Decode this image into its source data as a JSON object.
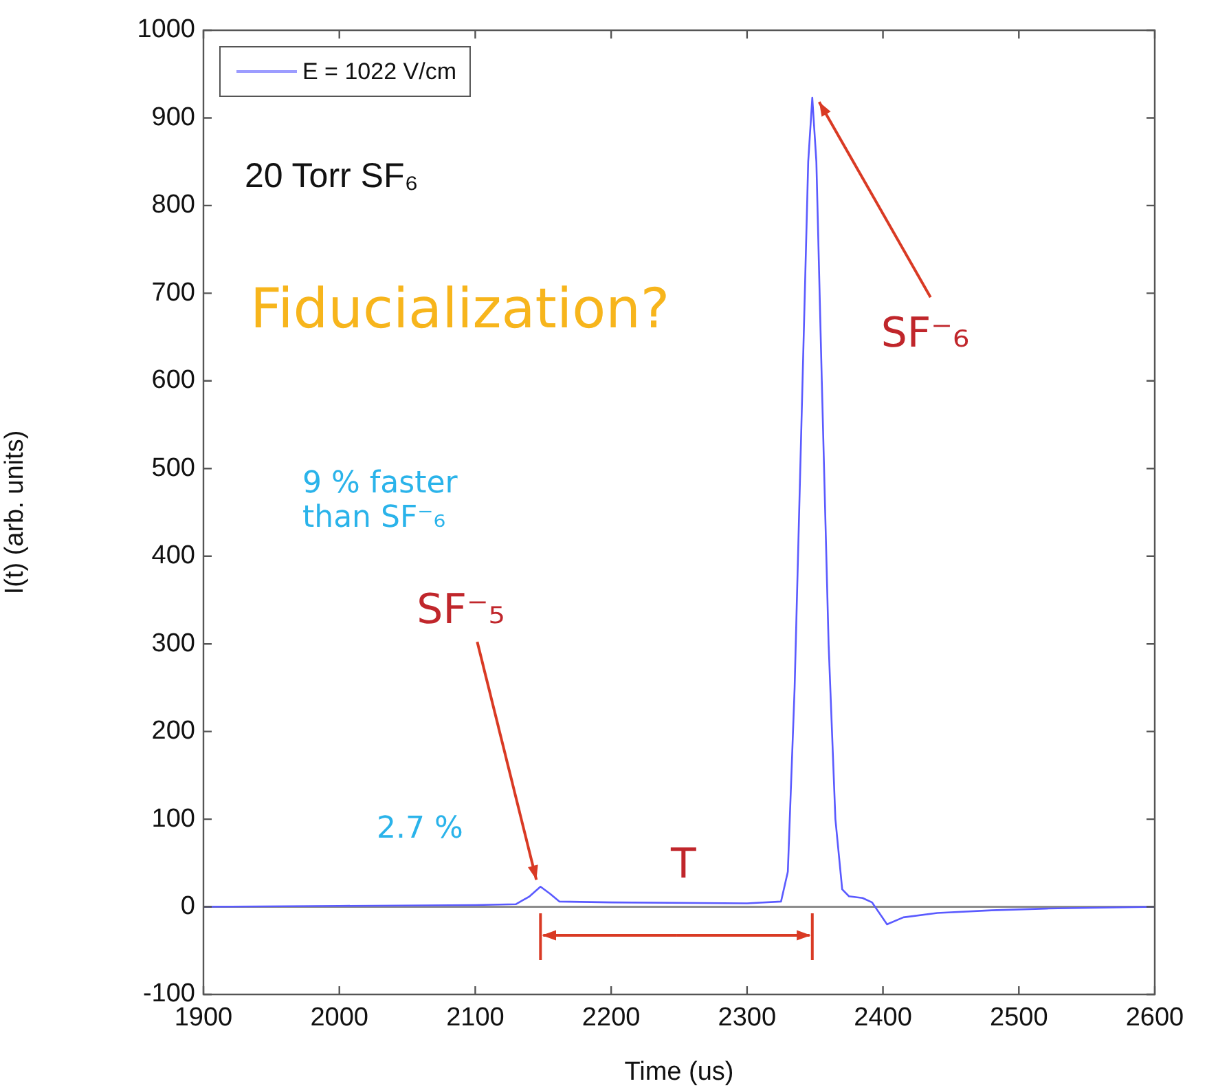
{
  "chart_data": {
    "type": "line",
    "xlabel": "Time (us)",
    "ylabel": "I(t) (arb. units)",
    "xlim": [
      1900,
      2600
    ],
    "xticks": [
      1900,
      2000,
      2100,
      2200,
      2300,
      2400,
      2500,
      2600
    ],
    "ylim": [
      -100,
      1000
    ],
    "yticks": [
      -100,
      0,
      100,
      200,
      300,
      400,
      500,
      600,
      700,
      800,
      900,
      1000
    ],
    "grid": false,
    "legend": "top left",
    "marker": "none",
    "line_style": "solid",
    "ref_lines": [
      {
        "axis": "y",
        "value": 0,
        "color": "#8c8c8c"
      }
    ],
    "series": [
      {
        "name": "E = 1022 V/cm",
        "color": "#5a5aff",
        "x": [
          1900,
          2000,
          2100,
          2130,
          2140,
          2148,
          2155,
          2162,
          2200,
          2300,
          2325,
          2330,
          2335,
          2340,
          2345,
          2348,
          2351,
          2355,
          2360,
          2365,
          2370,
          2375,
          2385,
          2392,
          2403,
          2415,
          2440,
          2480,
          2520,
          2600
        ],
        "values": [
          0,
          1,
          2,
          3,
          12,
          23,
          15,
          6,
          5,
          4,
          6,
          40,
          250,
          550,
          850,
          923,
          850,
          600,
          300,
          100,
          20,
          12,
          10,
          5,
          -20,
          -12,
          -7,
          -4,
          -2,
          0
        ]
      }
    ],
    "annotations": [
      "20 Torr SF₆",
      "Fiducialization?",
      {
        "text": "SF⁻₆",
        "x": 2348,
        "y": 923
      },
      "9 % faster than SF⁻₆",
      {
        "text": "SF⁻₅",
        "x": 2148,
        "y": 23
      },
      "2.7 %",
      "T"
    ]
  }
}
